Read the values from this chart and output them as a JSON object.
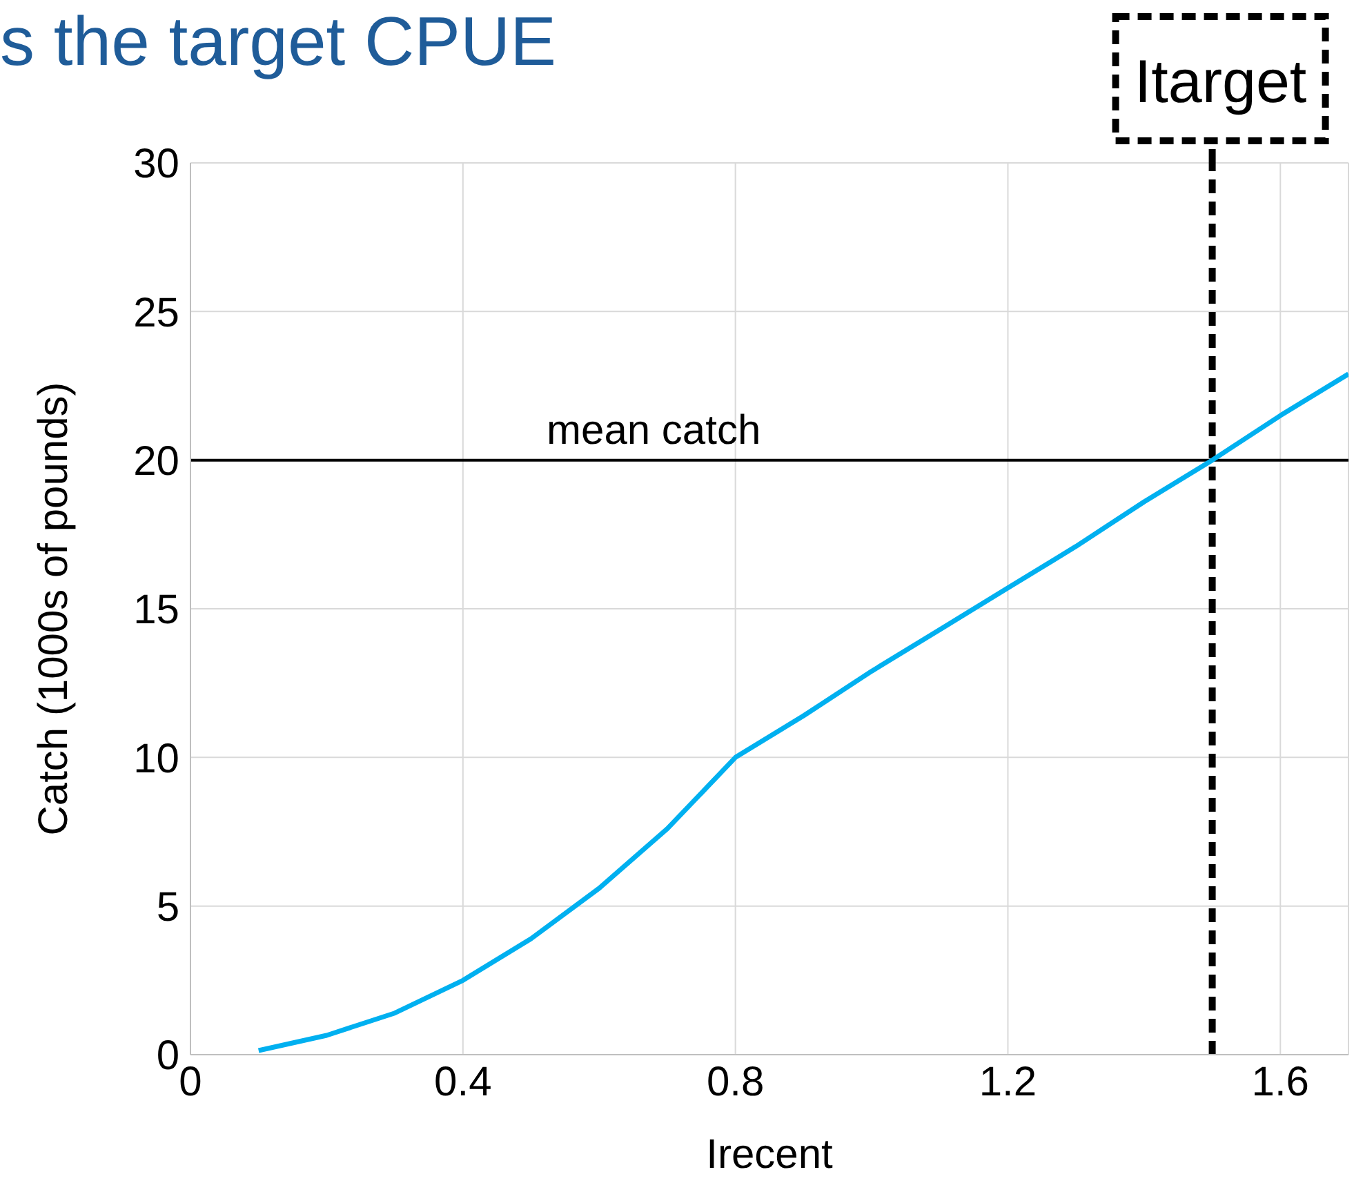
{
  "chart_data": {
    "type": "line",
    "title": "s the target CPUE",
    "xlabel": "Irecent",
    "ylabel": "Catch  (1000s of pounds)",
    "x": [
      0.1,
      0.2,
      0.3,
      0.4,
      0.5,
      0.6,
      0.7,
      0.8,
      0.9,
      1.0,
      1.1,
      1.2,
      1.3,
      1.4,
      1.5,
      1.6,
      1.7
    ],
    "series": [
      {
        "color": "#00b0f0",
        "values": [
          0.14,
          0.65,
          1.4,
          2.5,
          3.9,
          5.6,
          7.6,
          10.0,
          11.4,
          12.9,
          14.3,
          15.7,
          17.1,
          18.6,
          20.0,
          21.5,
          22.9
        ]
      }
    ],
    "xlim": [
      0,
      1.7
    ],
    "xticks": [
      0,
      0.4,
      0.8,
      1.2,
      1.6
    ],
    "ylim": [
      0,
      30
    ],
    "yticks": [
      0,
      5,
      10,
      15,
      20,
      25,
      30
    ],
    "grid": true,
    "marker": "none",
    "line_style": "solid",
    "ref_lines": [
      {
        "axis": "y",
        "value": 20,
        "label": "mean catch",
        "color": "#000000",
        "line_style": "solid"
      },
      {
        "axis": "x",
        "value": 1.5,
        "label": "Itarget",
        "color": "#000000",
        "line_style": "dashed"
      }
    ]
  }
}
